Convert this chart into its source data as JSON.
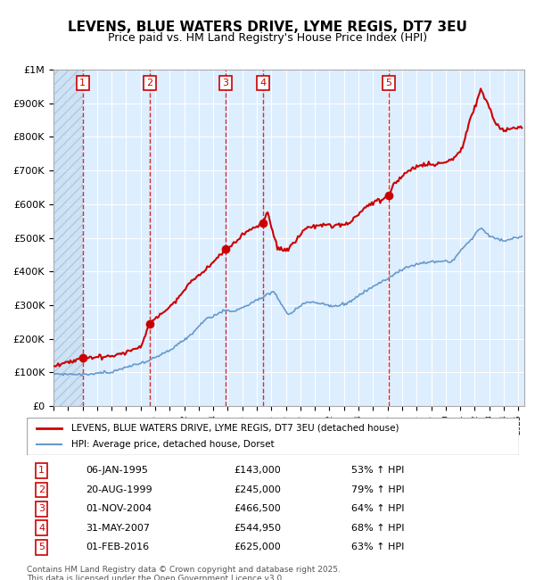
{
  "title": "LEVENS, BLUE WATERS DRIVE, LYME REGIS, DT7 3EU",
  "subtitle": "Price paid vs. HM Land Registry's House Price Index (HPI)",
  "ylabel_left": "",
  "xlim_start": "1993-01-01",
  "xlim_end": "2025-06-01",
  "ylim": [
    0,
    1000000
  ],
  "yticks": [
    0,
    100000,
    200000,
    300000,
    400000,
    500000,
    600000,
    700000,
    800000,
    900000,
    1000000
  ],
  "ytick_labels": [
    "£0",
    "£100K",
    "£200K",
    "£300K",
    "£400K",
    "£500K",
    "£600K",
    "£700K",
    "£800K",
    "£900K",
    "£1M"
  ],
  "sale_dates": [
    "1995-01-06",
    "1999-08-20",
    "2004-11-01",
    "2007-05-31",
    "2016-02-01"
  ],
  "sale_prices": [
    143000,
    245000,
    466500,
    544950,
    625000
  ],
  "sale_labels": [
    "1",
    "2",
    "3",
    "4",
    "5"
  ],
  "sale_info": [
    {
      "label": "1",
      "date": "06-JAN-1995",
      "price": "£143,000",
      "hpi": "53% ↑ HPI"
    },
    {
      "label": "2",
      "date": "20-AUG-1999",
      "price": "£245,000",
      "hpi": "79% ↑ HPI"
    },
    {
      "label": "3",
      "date": "01-NOV-2004",
      "price": "£466,500",
      "hpi": "64% ↑ HPI"
    },
    {
      "label": "4",
      "date": "31-MAY-2007",
      "price": "£544,950",
      "hpi": "68% ↑ HPI"
    },
    {
      "label": "5",
      "date": "01-FEB-2016",
      "price": "£625,000",
      "hpi": "63% ↑ HPI"
    }
  ],
  "legend_entries": [
    {
      "label": "LEVENS, BLUE WATERS DRIVE, LYME REGIS, DT7 3EU (detached house)",
      "color": "#cc0000",
      "lw": 2
    },
    {
      "label": "HPI: Average price, detached house, Dorset",
      "color": "#6699cc",
      "lw": 1.5
    }
  ],
  "footer": "Contains HM Land Registry data © Crown copyright and database right 2025.\nThis data is licensed under the Open Government Licence v3.0.",
  "background_chart": "#ddeeff",
  "background_hatch_color": "#c0d8f0",
  "grid_color": "#ffffff",
  "red_line_color": "#cc0000",
  "blue_line_color": "#6699cc",
  "sale_dot_color": "#cc0000",
  "vline_color": "#cc0000",
  "title_fontsize": 11,
  "subtitle_fontsize": 9,
  "tick_fontsize": 8
}
